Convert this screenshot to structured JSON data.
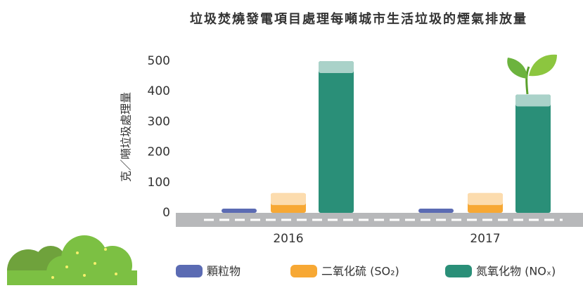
{
  "chart_data": {
    "type": "bar",
    "title": "垃圾焚燒發電項目處理每噸城市生活垃圾的煙氣排放量",
    "y_label": "克／噸垃圾處理量",
    "categories": [
      "2016",
      "2017"
    ],
    "series": [
      {
        "name": "顆粒物",
        "color": "#5b6bb3",
        "values": [
          14,
          14
        ]
      },
      {
        "name": "二氧化硫 (SO₂)",
        "color": "#f7a834",
        "values": [
          65,
          65
        ]
      },
      {
        "name": "氮氧化物 (NOₓ)",
        "color": "#2a8f78",
        "values": [
          500,
          390
        ]
      }
    ],
    "ylim": [
      0,
      500
    ],
    "yticks": [
      0,
      100,
      200,
      300,
      400,
      500
    ],
    "grid": false
  }
}
